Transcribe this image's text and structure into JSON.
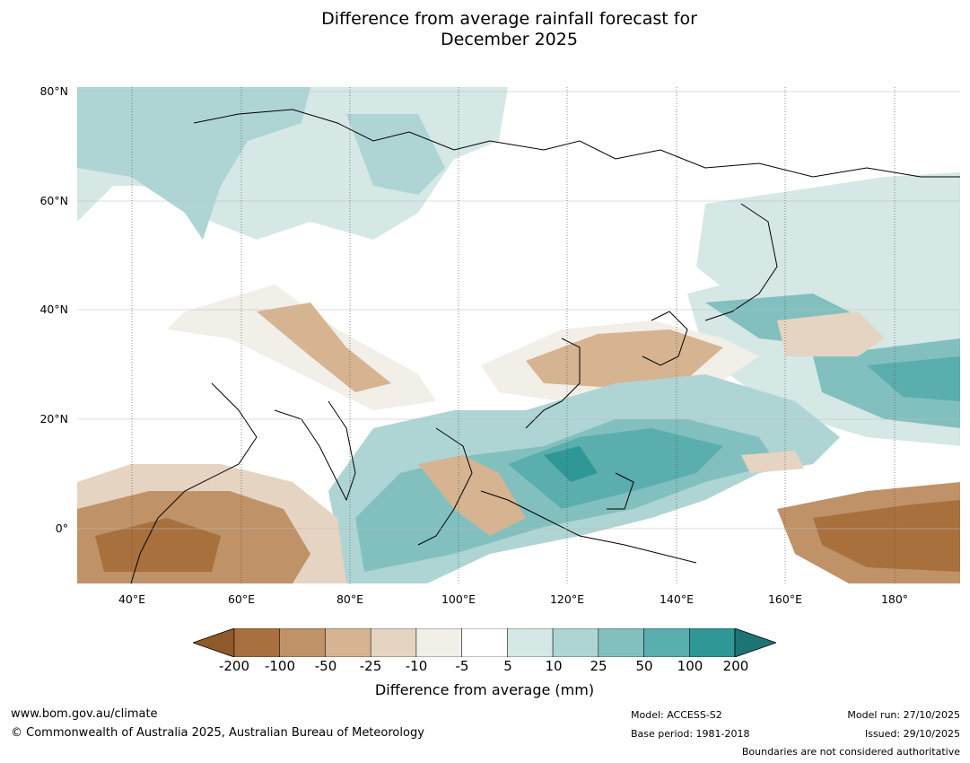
{
  "title_line1": "Difference from average rainfall forecast for",
  "title_line2": "December 2025",
  "lat_labels": [
    "80°N",
    "60°N",
    "40°N",
    "20°N",
    "0°"
  ],
  "lon_labels": [
    "40°E",
    "60°E",
    "80°E",
    "100°E",
    "120°E",
    "140°E",
    "160°E",
    "180°"
  ],
  "colorbar": {
    "label": "Difference from average (mm)",
    "ticks": [
      "-200",
      "-100",
      "-50",
      "-25",
      "-10",
      "-5",
      "5",
      "10",
      "25",
      "50",
      "100",
      "200"
    ],
    "colors": [
      "#8f5a2a",
      "#a8703c",
      "#c09268",
      "#d6b491",
      "#e6d4c2",
      "#f2eee8",
      "#ffffff",
      "#d5e8e6",
      "#aed5d4",
      "#82c0bf",
      "#5aaead",
      "#2f9795",
      "#1e7474"
    ]
  },
  "footer": {
    "website": "www.bom.gov.au/climate",
    "copyright": "© Commonwealth of Australia 2025, Australian Bureau of Meteorology",
    "model": "Model: ACCESS-S2",
    "base_period": "Base period: 1981-2018",
    "model_run": "Model run: 27/10/2025",
    "issued": "Issued: 29/10/2025",
    "disclaimer": "Boundaries are not considered authoritative"
  }
}
